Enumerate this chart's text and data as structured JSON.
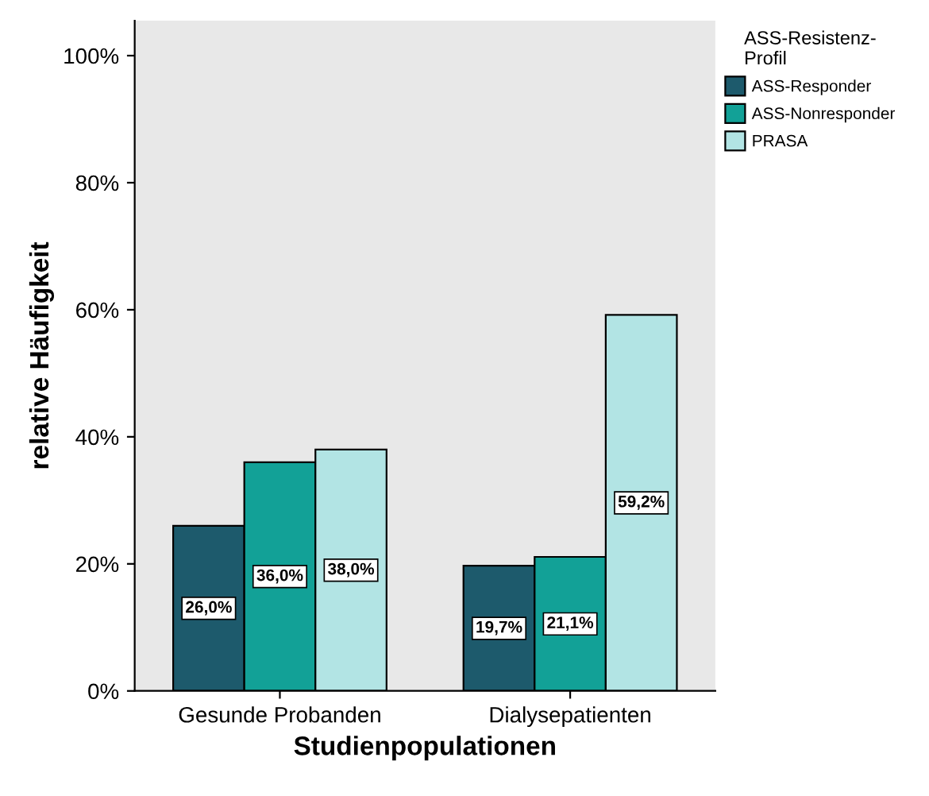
{
  "chart_data": {
    "type": "bar",
    "xlabel": "Studienpopulationen",
    "ylabel": "relative Häufigkeit",
    "legend_title": "ASS-Resistenz-\nProfil",
    "categories": [
      "Gesunde Probanden",
      "Dialysepatienten"
    ],
    "series": [
      {
        "name": "ASS-Responder",
        "color": "#1d5a6c",
        "values": [
          26.0,
          19.7
        ],
        "value_labels": [
          "26,0%",
          "19,7%"
        ]
      },
      {
        "name": "ASS-Nonresponder",
        "color": "#12a197",
        "values": [
          36.0,
          21.1
        ],
        "value_labels": [
          "36,0%",
          "21,1%"
        ]
      },
      {
        "name": "PRASA",
        "color": "#b2e4e4",
        "values": [
          38.0,
          59.2
        ],
        "value_labels": [
          "38,0%",
          "59,2%"
        ]
      }
    ],
    "ylim": [
      0,
      105.5
    ],
    "yticks": [
      {
        "value": 0,
        "label": "0%"
      },
      {
        "value": 20,
        "label": "20%"
      },
      {
        "value": 40,
        "label": "40%"
      },
      {
        "value": 60,
        "label": "60%"
      },
      {
        "value": 80,
        "label": "80%"
      },
      {
        "value": 100,
        "label": "100%"
      }
    ],
    "grid": false,
    "legend": "right"
  }
}
